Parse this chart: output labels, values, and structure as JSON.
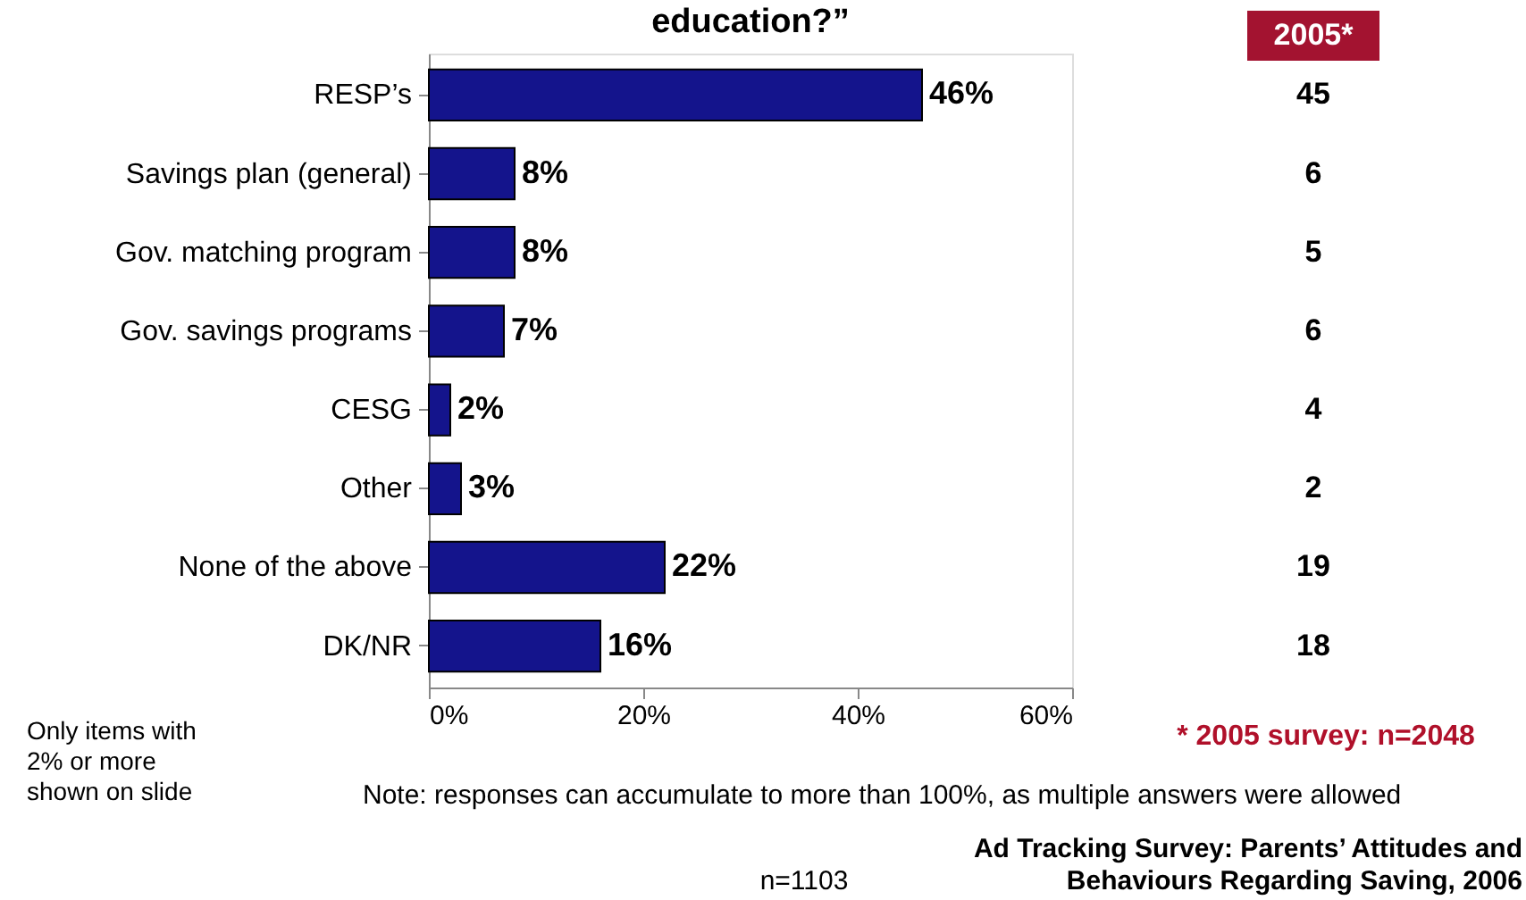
{
  "chart_data": {
    "type": "bar",
    "orientation": "horizontal",
    "title": "education?”",
    "categories": [
      "RESP’s",
      "Savings plan (general)",
      "Gov. matching program",
      "Gov. savings programs",
      "CESG",
      "Other",
      "None of the above",
      "DK/NR"
    ],
    "values": [
      46,
      8,
      8,
      7,
      2,
      3,
      22,
      16
    ],
    "value_labels": [
      "46%",
      "8%",
      "8%",
      "7%",
      "2%",
      "3%",
      "22%",
      "16%"
    ],
    "color": "#14148c",
    "xlim": [
      0,
      60
    ],
    "xticks": [
      {
        "value": 0,
        "label": "0%"
      },
      {
        "value": 20,
        "label": "20%"
      },
      {
        "value": 40,
        "label": "40%"
      },
      {
        "value": 60,
        "label": "60%"
      }
    ],
    "grid": false,
    "legend": false,
    "annotations": [
      "2005*",
      "Only items with\n2% or more\nshown on slide",
      "* 2005 survey: n=2048",
      "Note: responses can accumulate to more than 100%, as multiple answers were allowed",
      "n=1103",
      "Ad Tracking Survey: Parents’ Attitudes and\nBehaviours Regarding Saving, 2006",
      "45",
      "6",
      "5",
      "6",
      "4",
      "2",
      "19",
      "18"
    ]
  }
}
